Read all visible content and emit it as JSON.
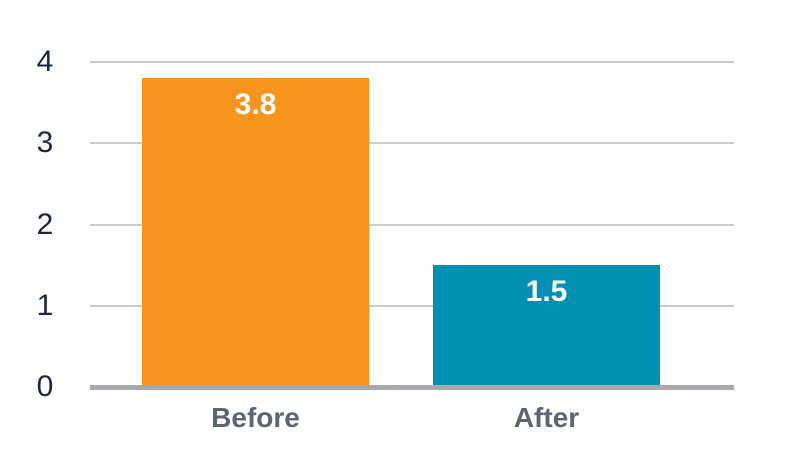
{
  "chart_data": {
    "type": "bar",
    "title": "",
    "xlabel": "",
    "ylabel": "",
    "categories": [
      "Before",
      "After"
    ],
    "values": [
      3.8,
      1.5
    ],
    "data_labels": [
      "3.8",
      "1.5"
    ],
    "bar_colors": [
      "#F7941E",
      "#0090B4"
    ],
    "y_ticks": [
      "0",
      "1",
      "2",
      "3",
      "4"
    ],
    "ylim": [
      0,
      4
    ],
    "grid": true,
    "legend_position": "none",
    "colors": {
      "background": "#FFFFFF",
      "tick_label": "#1A2744",
      "category_label": "#5C6672",
      "gridline": "#CBCBCB",
      "axis_line": "#A7A9AC",
      "data_label": "#FFFFFF"
    }
  }
}
